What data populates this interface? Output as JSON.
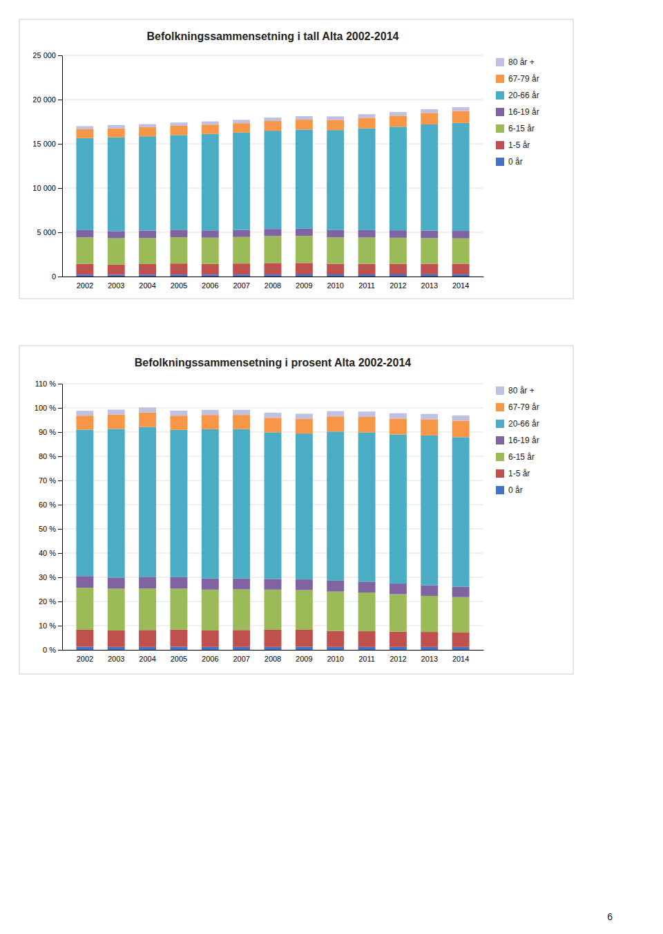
{
  "chart_data": [
    {
      "type": "bar",
      "stacked": true,
      "grid": true,
      "legend": "right",
      "title": "Befolkningssammensetning i tall Alta 2002-2014",
      "categories": [
        "2002",
        "2003",
        "2004",
        "2005",
        "2006",
        "2007",
        "2008",
        "2009",
        "2010",
        "2011",
        "2012",
        "2013",
        "2014"
      ],
      "ylim": [
        0,
        25000
      ],
      "yticks": [
        0,
        {
          "value": 5000,
          "label": "5 000"
        },
        {
          "value": 10000,
          "label": "10 000"
        },
        {
          "value": 15000,
          "label": "15 000"
        },
        {
          "value": 20000,
          "label": "20 000"
        },
        {
          "value": 25000,
          "label": "25 000"
        }
      ],
      "series": [
        {
          "name": "0 år",
          "color": "#4472C4",
          "values": [
            220,
            200,
            210,
            220,
            215,
            220,
            225,
            235,
            230,
            230,
            235,
            240,
            245
          ]
        },
        {
          "name": "1-5 år",
          "color": "#C0504D",
          "values": [
            1200,
            1150,
            1200,
            1250,
            1200,
            1250,
            1300,
            1300,
            1200,
            1200,
            1200,
            1200,
            1200
          ]
        },
        {
          "name": "6-15 år",
          "color": "#9BBB59",
          "values": [
            3000,
            2980,
            2950,
            2980,
            2980,
            3000,
            3050,
            3050,
            3000,
            2980,
            2950,
            2900,
            2870
          ]
        },
        {
          "name": "16-19 år",
          "color": "#8064A2",
          "values": [
            820,
            800,
            830,
            840,
            820,
            800,
            800,
            820,
            820,
            830,
            840,
            850,
            840
          ]
        },
        {
          "name": "20-66 år",
          "color": "#4BACC6",
          "values": [
            10400,
            10600,
            10650,
            10700,
            10900,
            11000,
            11100,
            11200,
            11300,
            11500,
            11700,
            12000,
            12200
          ]
        },
        {
          "name": "67-79 år",
          "color": "#F79646",
          "values": [
            1000,
            1020,
            1030,
            1040,
            1050,
            1060,
            1100,
            1120,
            1150,
            1200,
            1250,
            1300,
            1350
          ]
        },
        {
          "name": "80 år +",
          "color": "#C0C0E0",
          "values": [
            350,
            360,
            360,
            370,
            370,
            380,
            390,
            400,
            400,
            410,
            420,
            430,
            440
          ]
        }
      ]
    },
    {
      "type": "bar",
      "stacked": true,
      "grid": true,
      "legend": "right",
      "title": "Befolkningssammensetning i prosent Alta 2002-2014",
      "categories": [
        "2002",
        "2003",
        "2004",
        "2005",
        "2006",
        "2007",
        "2008",
        "2009",
        "2010",
        "2011",
        "2012",
        "2013",
        "2014"
      ],
      "ylim": [
        0,
        110
      ],
      "yticks": [
        {
          "value": 0,
          "label": "0 %"
        },
        {
          "value": 10,
          "label": "10 %"
        },
        {
          "value": 20,
          "label": "20 %"
        },
        {
          "value": 30,
          "label": "30 %"
        },
        {
          "value": 40,
          "label": "40 %"
        },
        {
          "value": 50,
          "label": "50 %"
        },
        {
          "value": 60,
          "label": "60 %"
        },
        {
          "value": 70,
          "label": "70 %"
        },
        {
          "value": 80,
          "label": "80 %"
        },
        {
          "value": 90,
          "label": "90 %"
        },
        {
          "value": 100,
          "label": "100 %"
        },
        {
          "value": 110,
          "label": "110 %"
        }
      ],
      "series": [
        {
          "name": "0 år",
          "color": "#4472C4",
          "values": [
            1.3,
            1.2,
            1.2,
            1.3,
            1.2,
            1.2,
            1.2,
            1.3,
            1.2,
            1.2,
            1.2,
            1.2,
            1.2
          ]
        },
        {
          "name": "1-5 år",
          "color": "#C0504D",
          "values": [
            7.0,
            6.8,
            7.0,
            7.1,
            6.8,
            7.0,
            7.1,
            7.0,
            6.6,
            6.5,
            6.3,
            6.2,
            6.1
          ]
        },
        {
          "name": "6-15 år",
          "color": "#9BBB59",
          "values": [
            17.4,
            17.3,
            17.2,
            16.9,
            16.9,
            16.8,
            16.6,
            16.4,
            16.3,
            16.0,
            15.5,
            14.9,
            14.5
          ]
        },
        {
          "name": "16-19 år",
          "color": "#8064A2",
          "values": [
            4.8,
            4.6,
            4.8,
            4.8,
            4.6,
            4.5,
            4.4,
            4.4,
            4.5,
            4.5,
            4.4,
            4.4,
            4.3
          ]
        },
        {
          "name": "20-66 år",
          "color": "#4BACC6",
          "values": [
            60.5,
            61.4,
            61.9,
            60.8,
            61.7,
            61.7,
            60.6,
            60.3,
            61.6,
            61.7,
            61.6,
            61.9,
            61.8
          ]
        },
        {
          "name": "67-79 år",
          "color": "#F79646",
          "values": [
            5.8,
            5.9,
            6.0,
            5.9,
            5.9,
            5.9,
            6.0,
            6.0,
            6.3,
            6.4,
            6.6,
            6.7,
            6.8
          ]
        },
        {
          "name": "80 år +",
          "color": "#C0C0E0",
          "values": [
            2.0,
            2.1,
            2.1,
            2.1,
            2.1,
            2.1,
            2.1,
            2.2,
            2.2,
            2.2,
            2.2,
            2.2,
            2.2
          ]
        }
      ],
      "annotations": [
        "6"
      ]
    }
  ]
}
